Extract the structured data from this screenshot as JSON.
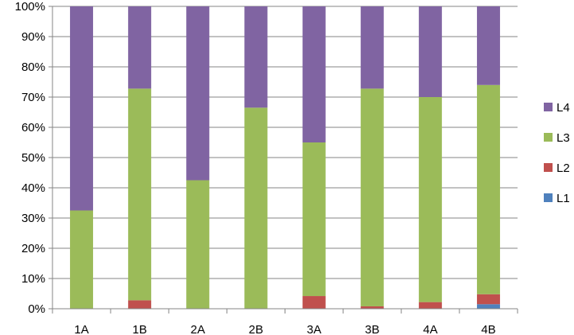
{
  "chart_data": {
    "type": "bar",
    "stacked": true,
    "normalized": true,
    "categories": [
      "1A",
      "1B",
      "2A",
      "2B",
      "3A",
      "3B",
      "4A",
      "4B"
    ],
    "series": [
      {
        "name": "L1",
        "color": "#4F81BD",
        "values": [
          0,
          0,
          0,
          0,
          0,
          0,
          0,
          1.5
        ]
      },
      {
        "name": "L2",
        "color": "#C0504D",
        "values": [
          0,
          2.8,
          0,
          0,
          4.2,
          0.8,
          2.2,
          3.3
        ]
      },
      {
        "name": "L3",
        "color": "#9BBB59",
        "values": [
          32.5,
          70,
          42.5,
          66.5,
          50.8,
          72,
          67.8,
          69.2
        ]
      },
      {
        "name": "L4",
        "color": "#8064A2",
        "values": [
          67.5,
          27.2,
          57.5,
          33.5,
          45,
          27.2,
          30,
          26
        ]
      }
    ],
    "ylim": [
      0,
      100
    ],
    "yticks": [
      "0%",
      "10%",
      "20%",
      "30%",
      "40%",
      "50%",
      "60%",
      "70%",
      "80%",
      "90%",
      "100%"
    ],
    "grid": true,
    "legend_position": "right",
    "legend_order": [
      "L4",
      "L3",
      "L2",
      "L1"
    ]
  }
}
